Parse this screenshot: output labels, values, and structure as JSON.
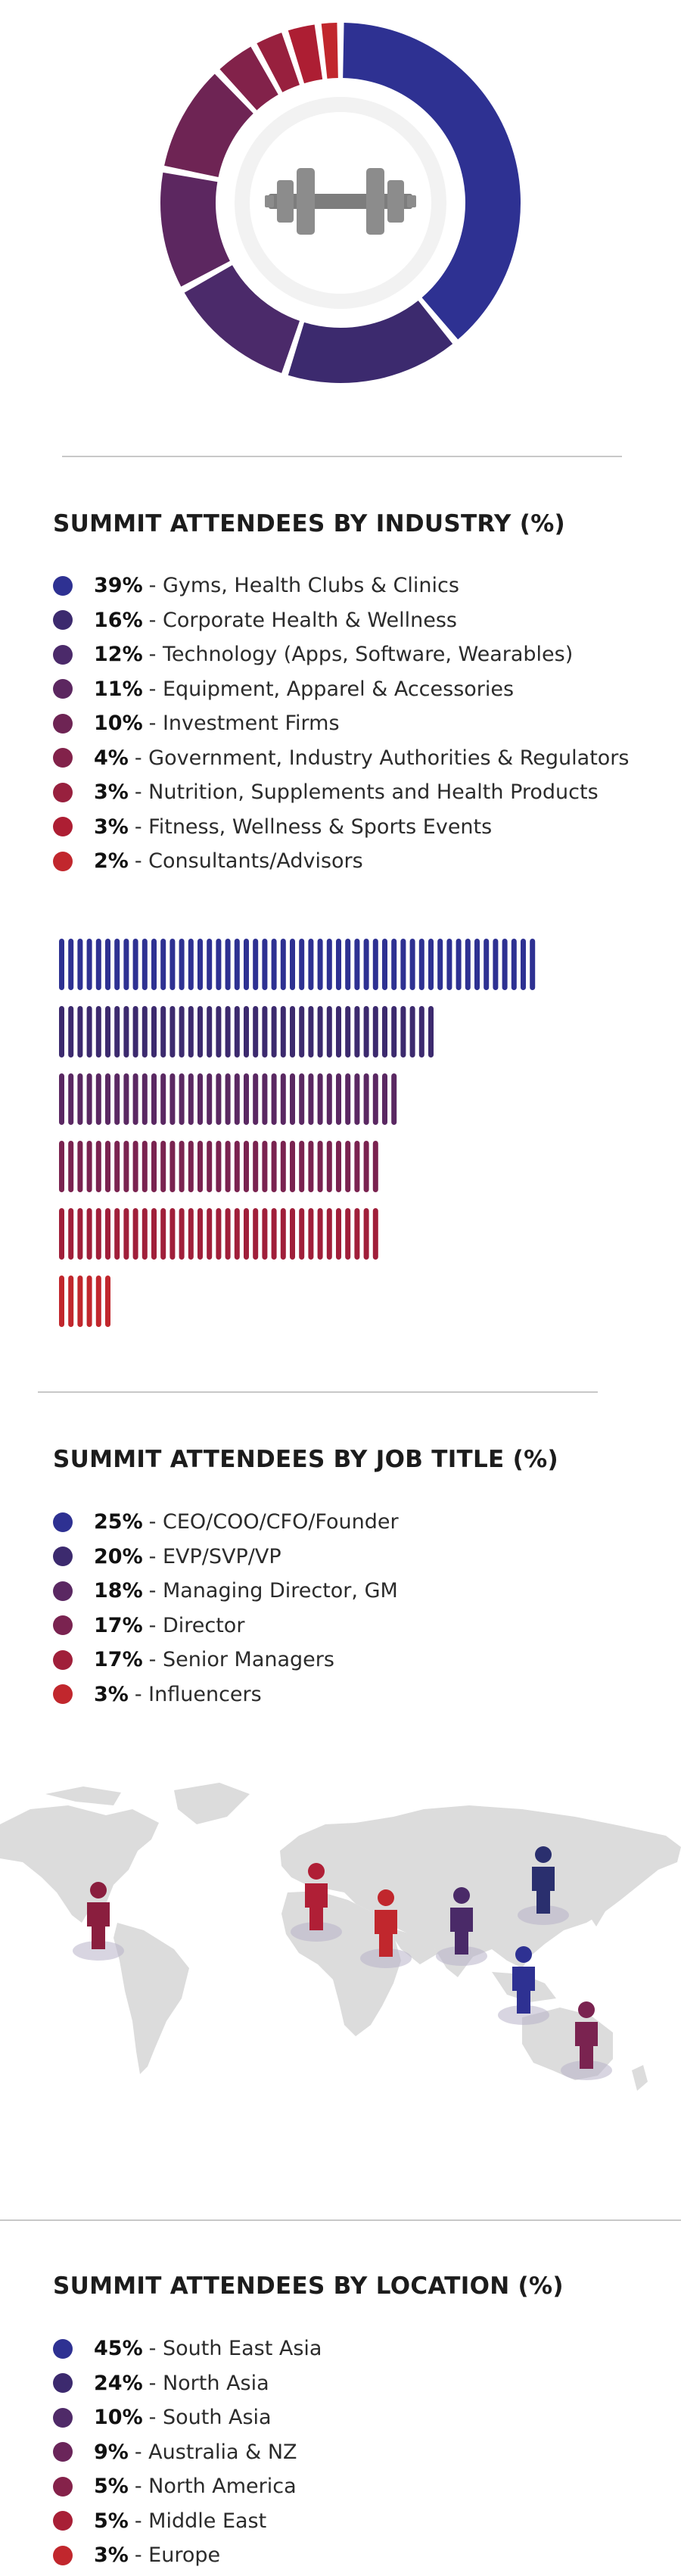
{
  "sections": {
    "industry": {
      "title": "SUMMIT ATTENDEES BY INDUSTRY (%)",
      "items": [
        {
          "pct": "39%",
          "label": " - Gyms, Health Clubs & Clinics",
          "color": "#2e3192"
        },
        {
          "pct": "16%",
          "label": " - Corporate Health & Wellness",
          "color": "#3c2a6e"
        },
        {
          "pct": "12%",
          "label": " - Technology (Apps, Software, Wearables)",
          "color": "#4b2a6a"
        },
        {
          "pct": "11%",
          "label": " - Equipment, Apparel & Accessories",
          "color": "#5c2760"
        },
        {
          "pct": "10%",
          "label": " - Investment Firms",
          "color": "#6e2454"
        },
        {
          "pct": "4%",
          "label": " - Government, Industry Authorities & Regulators",
          "color": "#82224a"
        },
        {
          "pct": "3%",
          "label": " - Nutrition, Supplements and Health Products",
          "color": "#98203e"
        },
        {
          "pct": "3%",
          "label": " - Fitness, Wellness & Sports Events",
          "color": "#ad1e33"
        },
        {
          "pct": "2%",
          "label": " - Consultants/Advisors",
          "color": "#c1272d"
        }
      ]
    },
    "job_title": {
      "title": "SUMMIT ATTENDEES BY JOB TITLE (%)",
      "items": [
        {
          "pct": "25%",
          "label": " - CEO/COO/CFO/Founder",
          "color": "#2e3192"
        },
        {
          "pct": "20%",
          "label": " - EVP/SVP/VP",
          "color": "#3c2a6e"
        },
        {
          "pct": "18%",
          "label": " - Managing Director, GM",
          "color": "#5a2862"
        },
        {
          "pct": "17%",
          "label": " - Director",
          "color": "#7a2350"
        },
        {
          "pct": "17%",
          "label": " - Senior Managers",
          "color": "#a01f3a"
        },
        {
          "pct": "3%",
          "label": " - Influencers",
          "color": "#c1272d"
        }
      ]
    },
    "location": {
      "title": "SUMMIT ATTENDEES BY LOCATION (%)",
      "items": [
        {
          "pct": "45%",
          "label": " - South East Asia",
          "color": "#2e3192"
        },
        {
          "pct": "24%",
          "label": " - North Asia",
          "color": "#3c2a6e"
        },
        {
          "pct": "10%",
          "label": " - South Asia",
          "color": "#4f2a68"
        },
        {
          "pct": "9%",
          "label": " - Australia & NZ",
          "color": "#6a255a"
        },
        {
          "pct": "5%",
          "label": " - North America",
          "color": "#85224a"
        },
        {
          "pct": "5%",
          "label": " - Middle East",
          "color": "#a81f36"
        },
        {
          "pct": "3%",
          "label": " - Europe",
          "color": "#c1272d"
        }
      ]
    }
  },
  "chart_data": [
    {
      "type": "pie",
      "variant": "donut",
      "center_icon": "dumbbell-icon",
      "labels": [
        "Gyms, Health Clubs & Clinics",
        "Corporate Health & Wellness",
        "Technology (Apps, Software, Wearables)",
        "Equipment, Apparel & Accessories",
        "Investment Firms",
        "Government, Industry Authorities & Regulators",
        "Nutrition, Supplements and Health Products",
        "Fitness, Wellness & Sports Events",
        "Consultants/Advisors"
      ],
      "values": [
        39,
        16,
        12,
        11,
        10,
        4,
        3,
        3,
        2
      ],
      "colors": [
        "#2e3192",
        "#3c2a6e",
        "#4b2a6a",
        "#5c2760",
        "#6e2454",
        "#82224a",
        "#98203e",
        "#ad1e33",
        "#c1272d"
      ]
    },
    {
      "type": "bar",
      "orientation": "horizontal",
      "style": "pictogram-stripes",
      "categories": [
        "CEO/COO/CFO/Founder",
        "EVP/SVP/VP",
        "Managing Director, GM",
        "Director",
        "Senior Managers",
        "Influencers"
      ],
      "values": [
        25,
        20,
        18,
        17,
        17,
        3
      ],
      "colors": [
        "#2e3192",
        "#3c2a6e",
        "#5a2862",
        "#7a2350",
        "#a01f3a",
        "#c1272d"
      ]
    },
    {
      "type": "map",
      "style": "pin-markers",
      "regions": [
        "North America",
        "Europe",
        "Middle East",
        "South Asia",
        "North Asia",
        "South East Asia",
        "Australia & NZ"
      ],
      "values": [
        5,
        3,
        5,
        10,
        24,
        45,
        9
      ],
      "colors": [
        "#8a1e3e",
        "#b01f36",
        "#c1272d",
        "#4a2a68",
        "#2a2f6e",
        "#2e3192",
        "#7a2350"
      ]
    }
  ]
}
